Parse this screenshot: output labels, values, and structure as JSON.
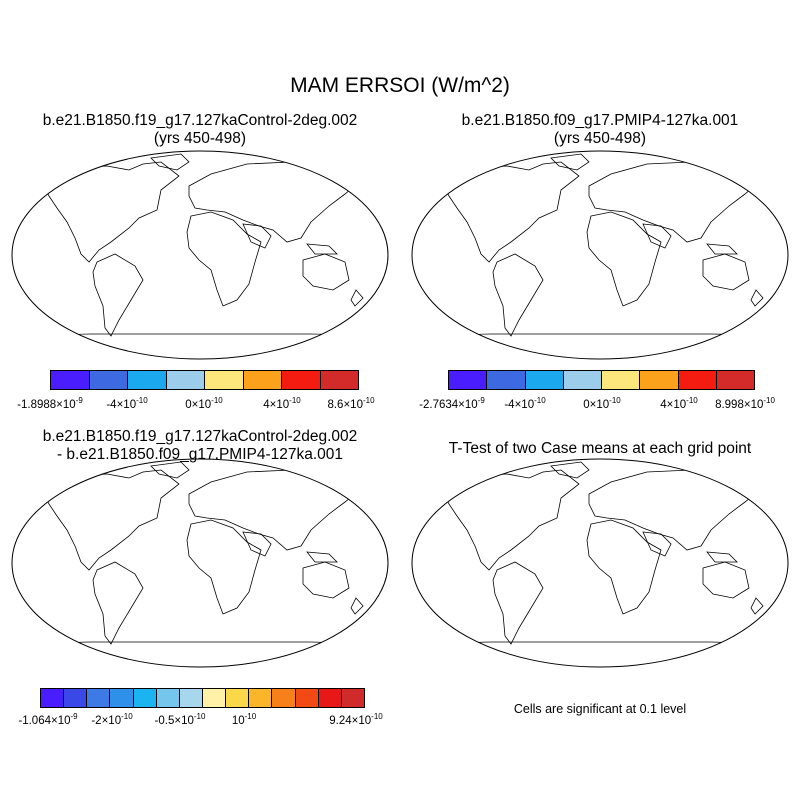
{
  "title": "MAM ERRSOI (W/m^2)",
  "panels": [
    {
      "title_line1": "b.e21.B1850.f19_g17.127kaControl-2deg.002",
      "title_line2": "(yrs 450-498)",
      "colorbar": {
        "colors": [
          "#4a1dff",
          "#3d6ae0",
          "#1ba8ef",
          "#9ccdea",
          "#fbe77b",
          "#fba11c",
          "#f41c10",
          "#d32a2a"
        ],
        "labels": [
          {
            "mant": "-1.8988×10",
            "exp": "-9"
          },
          {
            "mant": "-4×10",
            "exp": "-10"
          },
          {
            "mant": "0×10",
            "exp": "-10"
          },
          {
            "mant": "4×10",
            "exp": "-10"
          },
          {
            "mant": "8.6×10",
            "exp": "-10"
          }
        ]
      }
    },
    {
      "title_line1": "b.e21.B1850.f09_g17.PMIP4-127ka.001",
      "title_line2": "(yrs 450-498)",
      "colorbar": {
        "colors": [
          "#4a1dff",
          "#3d6ae0",
          "#1ba8ef",
          "#9ccdea",
          "#fbe77b",
          "#fba11c",
          "#f41c10",
          "#d32a2a"
        ],
        "labels": [
          {
            "mant": "-2.7634×10",
            "exp": "-9"
          },
          {
            "mant": "-4×10",
            "exp": "-10"
          },
          {
            "mant": "0×10",
            "exp": "-10"
          },
          {
            "mant": "4×10",
            "exp": "-10"
          },
          {
            "mant": "8.998×10",
            "exp": "-10"
          }
        ]
      }
    },
    {
      "title_line1": "b.e21.B1850.f19_g17.127kaControl-2deg.002",
      "title_line2": "- b.e21.B1850.f09_g17.PMIP4-127ka.001",
      "colorbar": {
        "colors": [
          "#4a1dff",
          "#3948e6",
          "#3d7ae6",
          "#2f90ea",
          "#1bb4f0",
          "#74c6ec",
          "#a8d6ec",
          "#fff2a8",
          "#fbd84a",
          "#fbb52a",
          "#f7801a",
          "#f24a14",
          "#e81818",
          "#d02a2a"
        ],
        "labels": [
          {
            "mant": "-1.064×10",
            "exp": "-9"
          },
          {
            "mant": "-2×10",
            "exp": "-10"
          },
          {
            "mant": "-0.5×10",
            "exp": "-10"
          },
          {
            "mant": "10",
            "exp": "-10"
          },
          {
            "mant": "9.24×10",
            "exp": "-10"
          }
        ]
      }
    },
    {
      "title_line1": "T-Test of two Case means at each grid point",
      "note": "Cells are significant at 0.1 level",
      "colors": {
        "significant": "#ff0000"
      }
    }
  ]
}
